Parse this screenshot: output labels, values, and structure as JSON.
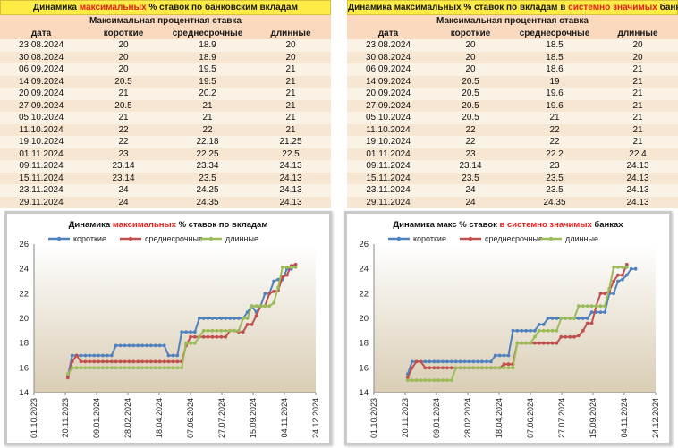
{
  "colors": {
    "title_bg": "#ffeb45",
    "header_bg": "#fad9bf",
    "highlight": "#e0201b",
    "short": "#4f81bd",
    "medium": "#c0504d",
    "long": "#9bbb59"
  },
  "tables": [
    {
      "title_pre": "Динамика ",
      "title_hl": "максимальных",
      "title_post": " % ставок по банковским вкладам",
      "subheader": "Максимальная процентная ставка",
      "columns": [
        "дата",
        "короткие",
        "среднесрочные",
        "длинные"
      ],
      "rows": [
        [
          "23.08.2024",
          "20",
          "18.9",
          "20"
        ],
        [
          "30.08.2024",
          "20",
          "18.9",
          "20"
        ],
        [
          "06.09.2024",
          "20",
          "19.5",
          "21"
        ],
        [
          "14.09.2024",
          "20.5",
          "19.5",
          "21"
        ],
        [
          "20.09.2024",
          "21",
          "20.2",
          "21"
        ],
        [
          "27.09.2024",
          "20.5",
          "21",
          "21"
        ],
        [
          "05.10.2024",
          "21",
          "21",
          "21"
        ],
        [
          "11.10.2024",
          "22",
          "22",
          "21"
        ],
        [
          "19.10.2024",
          "22",
          "22.18",
          "21.25"
        ],
        [
          "01.11.2024",
          "23",
          "22.25",
          "22.5"
        ],
        [
          "09.11.2024",
          "23.14",
          "23.34",
          "24.13"
        ],
        [
          "15.11.2024",
          "23.14",
          "23.5",
          "24.13"
        ],
        [
          "23.11.2024",
          "24",
          "24.25",
          "24.13"
        ],
        [
          "29.11.2024",
          "24",
          "24.35",
          "24.13"
        ]
      ]
    },
    {
      "title_pre": "Динамика максимальных % ставок по вкладам в ",
      "title_hl": "системно значимых",
      "title_post": " банках",
      "subheader": "Максимальная процентная ставка",
      "columns": [
        "дата",
        "короткие",
        "среднесрочные",
        "длинные"
      ],
      "rows": [
        [
          "23.08.2024",
          "20",
          "18.5",
          "20"
        ],
        [
          "30.08.2024",
          "20",
          "18.5",
          "20"
        ],
        [
          "06.09.2024",
          "20",
          "18.6",
          "21"
        ],
        [
          "14.09.2024",
          "20.5",
          "19",
          "21"
        ],
        [
          "20.09.2024",
          "20.5",
          "19.6",
          "21"
        ],
        [
          "27.09.2024",
          "20.5",
          "19.6",
          "21"
        ],
        [
          "05.10.2024",
          "20.5",
          "21",
          "21"
        ],
        [
          "11.10.2024",
          "22",
          "22",
          "21"
        ],
        [
          "19.10.2024",
          "22",
          "22",
          "21"
        ],
        [
          "01.11.2024",
          "23",
          "22.2",
          "22.4"
        ],
        [
          "09.11.2024",
          "23.14",
          "23",
          "24.13"
        ],
        [
          "15.11.2024",
          "23.5",
          "23.5",
          "24.13"
        ],
        [
          "23.11.2024",
          "24",
          "23.5",
          "24.13"
        ],
        [
          "29.11.2024",
          "24",
          "24.35",
          "24.13"
        ]
      ]
    }
  ],
  "chart_data": [
    {
      "type": "line",
      "title_pre": "Динамика ",
      "title_hl": "максимальных",
      "title_post": " % ставок по вкладам",
      "ylim": [
        14,
        26
      ],
      "yticks": [
        14,
        16,
        18,
        20,
        22,
        24,
        26
      ],
      "xlim": [
        "2023-10-01",
        "2024-12-24"
      ],
      "xtick_labels": [
        "01.10.2023",
        "20.11.2023",
        "09.01.2024",
        "28.02.2024",
        "18.04.2024",
        "07.06.2024",
        "27.07.2024",
        "15.09.2024",
        "04.11.2024",
        "24.12.2024"
      ],
      "xticks": [
        "2023-10-01",
        "2023-11-20",
        "2024-01-09",
        "2024-02-28",
        "2024-04-18",
        "2024-06-07",
        "2024-07-27",
        "2024-09-15",
        "2024-11-04",
        "2024-12-24"
      ],
      "legend": [
        "короткие",
        "среднесрочные",
        "длинные"
      ],
      "series": [
        {
          "name": "короткие",
          "start": "2023-11-24",
          "step_days": 7,
          "values": [
            15.3,
            17,
            17,
            17,
            17,
            17,
            17,
            17,
            17,
            17,
            17,
            17.8,
            17.8,
            17.8,
            17.8,
            17.8,
            17.8,
            17.8,
            17.8,
            17.8,
            17.8,
            17.8,
            17.8,
            17,
            17,
            17,
            18.9,
            18.9,
            18.9,
            18.9,
            20,
            20,
            20,
            20,
            20,
            20,
            20,
            20,
            20,
            20,
            20,
            20.5,
            21,
            20.5,
            21,
            22,
            22,
            23,
            23.14,
            23.14,
            24,
            24
          ]
        },
        {
          "name": "среднесрочные",
          "start": "2023-11-24",
          "step_days": 7,
          "values": [
            15.2,
            16.5,
            17,
            16.5,
            16.5,
            16.5,
            16.5,
            16.5,
            16.5,
            16.5,
            16.5,
            16.5,
            16.5,
            16.5,
            16.5,
            16.5,
            16.5,
            16.5,
            16.5,
            16.5,
            16.5,
            16.5,
            16.5,
            16.5,
            16.5,
            16.5,
            16.5,
            17.8,
            18.5,
            18.5,
            18.5,
            18.5,
            18.5,
            18.5,
            18.5,
            18.5,
            18.5,
            19,
            19,
            18.9,
            18.9,
            19.5,
            19.5,
            20.2,
            21,
            21,
            22,
            22.18,
            22.25,
            23.34,
            23.5,
            24.25,
            24.35
          ]
        },
        {
          "name": "длинные",
          "start": "2023-11-24",
          "step_days": 7,
          "values": [
            15.5,
            16,
            16,
            16,
            16,
            16,
            16,
            16,
            16,
            16,
            16,
            16,
            16,
            16,
            16,
            16,
            16,
            16,
            16,
            16,
            16,
            16,
            16,
            16,
            16,
            16,
            16,
            18,
            18,
            18,
            18.5,
            19,
            19,
            19,
            19,
            19,
            19,
            19,
            19,
            19,
            20,
            20,
            21,
            21,
            21,
            21,
            21,
            21.25,
            22.5,
            24.13,
            24.13,
            24.13,
            24.13
          ]
        }
      ]
    },
    {
      "type": "line",
      "title_pre": "Динамика макс % ставок ",
      "title_hl": "в системно значимых",
      "title_post": " банках",
      "ylim": [
        14,
        26
      ],
      "yticks": [
        14,
        16,
        18,
        20,
        22,
        24,
        26
      ],
      "xlim": [
        "2023-10-01",
        "2024-12-24"
      ],
      "xtick_labels": [
        "01.10.2023",
        "20.11.2023",
        "09.01.2024",
        "28.02.2024",
        "18.04.2024",
        "07.06.2024",
        "27.07.2024",
        "15.09.2024",
        "04.11.2024",
        "24.12.2024"
      ],
      "xticks": [
        "2023-10-01",
        "2023-11-20",
        "2024-01-09",
        "2024-02-28",
        "2024-04-18",
        "2024-06-07",
        "2024-07-27",
        "2024-09-15",
        "2024-11-04",
        "2024-12-24"
      ],
      "legend": [
        "короткие",
        "среднесрочные",
        "длинные"
      ],
      "series": [
        {
          "name": "короткие",
          "start": "2023-11-24",
          "step_days": 7,
          "values": [
            15.5,
            16.5,
            16.5,
            16.5,
            16.5,
            16.5,
            16.5,
            16.5,
            16.5,
            16.5,
            16.5,
            16.5,
            16.5,
            16.5,
            16.5,
            16.5,
            16.5,
            16.5,
            16.5,
            16.5,
            17,
            17,
            17,
            17,
            19,
            19,
            19,
            19,
            19,
            19,
            19.5,
            19.5,
            20,
            20,
            20,
            20,
            20,
            20,
            20,
            20,
            20,
            20,
            20.5,
            20.5,
            20.5,
            20.5,
            22,
            22,
            23,
            23.14,
            23.5,
            24,
            24
          ]
        },
        {
          "name": "среднесрочные",
          "start": "2023-11-24",
          "step_days": 7,
          "values": [
            15.2,
            16,
            16.5,
            16.5,
            16,
            16,
            16,
            16,
            16,
            16,
            16,
            16,
            16,
            16,
            16,
            16,
            16,
            16,
            16,
            16,
            16,
            16,
            16.3,
            16.3,
            16.3,
            18,
            18,
            18,
            18,
            18,
            18,
            18,
            18,
            18,
            18,
            18.5,
            18.5,
            18.5,
            18.5,
            18.6,
            19,
            19.6,
            19.6,
            21,
            22,
            22,
            22.2,
            23,
            23.5,
            23.5,
            24.35
          ]
        },
        {
          "name": "длинные",
          "start": "2023-11-24",
          "step_days": 7,
          "values": [
            15,
            15,
            15,
            15,
            15,
            15,
            15,
            15,
            15,
            15,
            15,
            16,
            16,
            16,
            16,
            16,
            16,
            16,
            16,
            16,
            16,
            16,
            16,
            16,
            16,
            18,
            18,
            18,
            18,
            18.5,
            19,
            19,
            19,
            19,
            19,
            20,
            20,
            20,
            20,
            21,
            21,
            21,
            21,
            21,
            21,
            21,
            22.4,
            24.13,
            24.13,
            24.13,
            24.13
          ]
        }
      ]
    }
  ]
}
